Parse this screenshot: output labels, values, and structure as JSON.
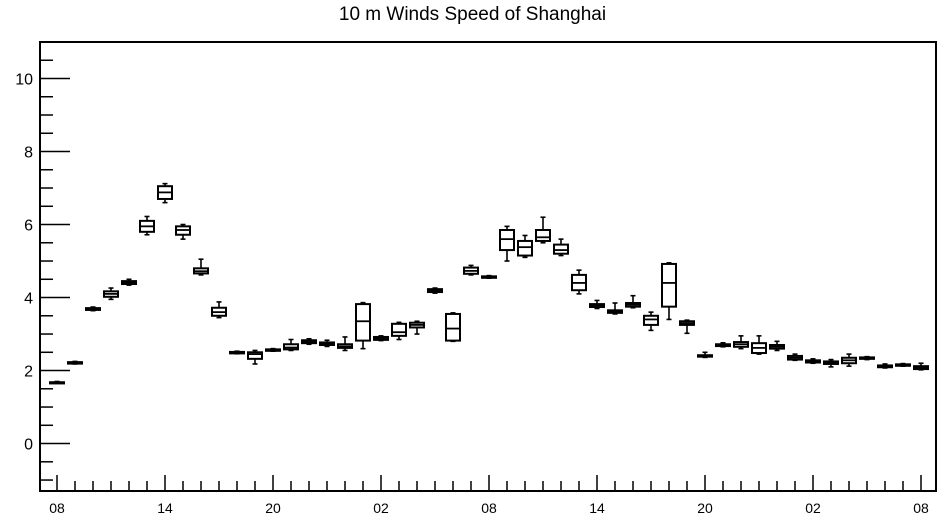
{
  "chart_data": {
    "type": "boxplot",
    "title": "10 m Winds Speed of Shanghai",
    "xlabel": "",
    "ylabel": "",
    "ylim": [
      -1.3,
      11.0
    ],
    "y_ticks": [
      0,
      2,
      4,
      6,
      8,
      10
    ],
    "x_tick_labels": [
      "08",
      "14",
      "20",
      "02",
      "08",
      "14",
      "20",
      "02",
      "08"
    ],
    "x_tick_label_hours": [
      0,
      6,
      12,
      18,
      24,
      30,
      36,
      42,
      48
    ],
    "grid": false,
    "boxes": [
      {
        "hour": 0,
        "whisker_low": 1.65,
        "q1": 1.66,
        "median": 1.67,
        "q3": 1.68,
        "whisker_high": 1.7
      },
      {
        "hour": 1,
        "whisker_low": 2.18,
        "q1": 2.19,
        "median": 2.21,
        "q3": 2.23,
        "whisker_high": 2.25
      },
      {
        "hour": 2,
        "whisker_low": 3.64,
        "q1": 3.66,
        "median": 3.69,
        "q3": 3.71,
        "whisker_high": 3.74
      },
      {
        "hour": 3,
        "whisker_low": 3.95,
        "q1": 4.02,
        "median": 4.1,
        "q3": 4.17,
        "whisker_high": 4.26
      },
      {
        "hour": 4,
        "whisker_low": 4.34,
        "q1": 4.37,
        "median": 4.41,
        "q3": 4.45,
        "whisker_high": 4.5
      },
      {
        "hour": 5,
        "whisker_low": 5.72,
        "q1": 5.8,
        "median": 5.95,
        "q3": 6.1,
        "whisker_high": 6.22
      },
      {
        "hour": 6,
        "whisker_low": 6.6,
        "q1": 6.7,
        "median": 6.88,
        "q3": 7.05,
        "whisker_high": 7.12
      },
      {
        "hour": 7,
        "whisker_low": 5.6,
        "q1": 5.72,
        "median": 5.85,
        "q3": 5.95,
        "whisker_high": 6.0
      },
      {
        "hour": 8,
        "whisker_low": 4.62,
        "q1": 4.66,
        "median": 4.72,
        "q3": 4.8,
        "whisker_high": 5.05
      },
      {
        "hour": 9,
        "whisker_low": 3.45,
        "q1": 3.5,
        "median": 3.6,
        "q3": 3.72,
        "whisker_high": 3.88
      },
      {
        "hour": 10,
        "whisker_low": 2.46,
        "q1": 2.47,
        "median": 2.49,
        "q3": 2.51,
        "whisker_high": 2.53
      },
      {
        "hour": 11,
        "whisker_low": 2.18,
        "q1": 2.32,
        "median": 2.45,
        "q3": 2.5,
        "whisker_high": 2.55
      },
      {
        "hour": 12,
        "whisker_low": 2.53,
        "q1": 2.54,
        "median": 2.56,
        "q3": 2.58,
        "whisker_high": 2.6
      },
      {
        "hour": 13,
        "whisker_low": 2.55,
        "q1": 2.58,
        "median": 2.63,
        "q3": 2.72,
        "whisker_high": 2.85
      },
      {
        "hour": 14,
        "whisker_low": 2.72,
        "q1": 2.75,
        "median": 2.79,
        "q3": 2.83,
        "whisker_high": 2.87
      },
      {
        "hour": 15,
        "whisker_low": 2.66,
        "q1": 2.7,
        "median": 2.73,
        "q3": 2.77,
        "whisker_high": 2.83
      },
      {
        "hour": 16,
        "whisker_low": 2.55,
        "q1": 2.62,
        "median": 2.66,
        "q3": 2.72,
        "whisker_high": 2.92
      },
      {
        "hour": 17,
        "whisker_low": 2.6,
        "q1": 2.82,
        "median": 3.35,
        "q3": 3.82,
        "whisker_high": 3.86
      },
      {
        "hour": 18,
        "whisker_low": 2.82,
        "q1": 2.84,
        "median": 2.88,
        "q3": 2.92,
        "whisker_high": 2.95
      },
      {
        "hour": 19,
        "whisker_low": 2.85,
        "q1": 2.95,
        "median": 3.05,
        "q3": 3.28,
        "whisker_high": 3.32
      },
      {
        "hour": 20,
        "whisker_low": 3.0,
        "q1": 3.18,
        "median": 3.25,
        "q3": 3.31,
        "whisker_high": 3.35
      },
      {
        "hour": 21,
        "whisker_low": 4.12,
        "q1": 4.15,
        "median": 4.19,
        "q3": 4.23,
        "whisker_high": 4.26
      },
      {
        "hour": 22,
        "whisker_low": 2.8,
        "q1": 2.82,
        "median": 3.15,
        "q3": 3.55,
        "whisker_high": 3.58
      },
      {
        "hour": 23,
        "whisker_low": 4.62,
        "q1": 4.65,
        "median": 4.73,
        "q3": 4.82,
        "whisker_high": 4.88
      },
      {
        "hour": 24,
        "whisker_low": 4.53,
        "q1": 4.54,
        "median": 4.56,
        "q3": 4.58,
        "whisker_high": 4.6
      },
      {
        "hour": 25,
        "whisker_low": 5.0,
        "q1": 5.3,
        "median": 5.6,
        "q3": 5.85,
        "whisker_high": 5.95
      },
      {
        "hour": 26,
        "whisker_low": 5.1,
        "q1": 5.15,
        "median": 5.38,
        "q3": 5.55,
        "whisker_high": 5.7
      },
      {
        "hour": 27,
        "whisker_low": 5.5,
        "q1": 5.55,
        "median": 5.65,
        "q3": 5.85,
        "whisker_high": 6.2
      },
      {
        "hour": 28,
        "whisker_low": 5.15,
        "q1": 5.2,
        "median": 5.3,
        "q3": 5.45,
        "whisker_high": 5.6
      },
      {
        "hour": 29,
        "whisker_low": 4.1,
        "q1": 4.2,
        "median": 4.4,
        "q3": 4.62,
        "whisker_high": 4.75
      },
      {
        "hour": 30,
        "whisker_low": 3.7,
        "q1": 3.74,
        "median": 3.79,
        "q3": 3.82,
        "whisker_high": 3.92
      },
      {
        "hour": 31,
        "whisker_low": 3.55,
        "q1": 3.58,
        "median": 3.62,
        "q3": 3.65,
        "whisker_high": 3.85
      },
      {
        "hour": 32,
        "whisker_low": 3.72,
        "q1": 3.75,
        "median": 3.8,
        "q3": 3.85,
        "whisker_high": 4.05
      },
      {
        "hour": 33,
        "whisker_low": 3.1,
        "q1": 3.25,
        "median": 3.4,
        "q3": 3.5,
        "whisker_high": 3.6
      },
      {
        "hour": 34,
        "whisker_low": 3.4,
        "q1": 3.75,
        "median": 4.4,
        "q3": 4.92,
        "whisker_high": 4.95
      },
      {
        "hour": 35,
        "whisker_low": 3.02,
        "q1": 3.25,
        "median": 3.3,
        "q3": 3.35,
        "whisker_high": 3.38
      },
      {
        "hour": 36,
        "whisker_low": 2.36,
        "q1": 2.38,
        "median": 2.4,
        "q3": 2.42,
        "whisker_high": 2.5
      },
      {
        "hour": 37,
        "whisker_low": 2.65,
        "q1": 2.67,
        "median": 2.7,
        "q3": 2.72,
        "whisker_high": 2.76
      },
      {
        "hour": 38,
        "whisker_low": 2.6,
        "q1": 2.65,
        "median": 2.72,
        "q3": 2.78,
        "whisker_high": 2.95
      },
      {
        "hour": 39,
        "whisker_low": 2.45,
        "q1": 2.48,
        "median": 2.62,
        "q3": 2.75,
        "whisker_high": 2.95
      },
      {
        "hour": 40,
        "whisker_low": 2.55,
        "q1": 2.6,
        "median": 2.65,
        "q3": 2.7,
        "whisker_high": 2.8
      },
      {
        "hour": 41,
        "whisker_low": 2.28,
        "q1": 2.3,
        "median": 2.35,
        "q3": 2.4,
        "whisker_high": 2.45
      },
      {
        "hour": 42,
        "whisker_low": 2.2,
        "q1": 2.22,
        "median": 2.25,
        "q3": 2.28,
        "whisker_high": 2.32
      },
      {
        "hour": 43,
        "whisker_low": 2.1,
        "q1": 2.18,
        "median": 2.22,
        "q3": 2.25,
        "whisker_high": 2.3
      },
      {
        "hour": 44,
        "whisker_low": 2.12,
        "q1": 2.2,
        "median": 2.28,
        "q3": 2.35,
        "whisker_high": 2.45
      },
      {
        "hour": 45,
        "whisker_low": 2.3,
        "q1": 2.32,
        "median": 2.34,
        "q3": 2.36,
        "whisker_high": 2.38
      },
      {
        "hour": 46,
        "whisker_low": 2.07,
        "q1": 2.09,
        "median": 2.11,
        "q3": 2.14,
        "whisker_high": 2.18
      },
      {
        "hour": 47,
        "whisker_low": 2.12,
        "q1": 2.13,
        "median": 2.15,
        "q3": 2.17,
        "whisker_high": 2.19
      },
      {
        "hour": 48,
        "whisker_low": 2.02,
        "q1": 2.04,
        "median": 2.08,
        "q3": 2.12,
        "whisker_high": 2.2
      }
    ]
  }
}
